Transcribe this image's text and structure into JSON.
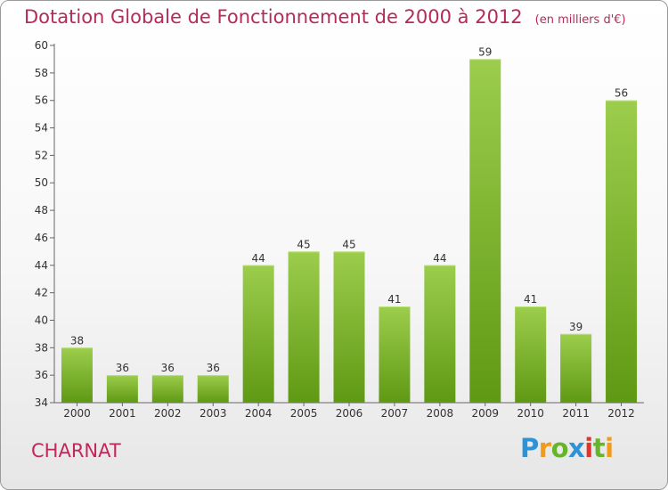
{
  "chart_data": {
    "type": "bar",
    "title": "Dotation Globale de Fonctionnement de 2000 à 2012",
    "unit_note": "(en milliers d'€)",
    "categories": [
      "2000",
      "2001",
      "2002",
      "2003",
      "2004",
      "2005",
      "2006",
      "2007",
      "2008",
      "2009",
      "2010",
      "2011",
      "2012"
    ],
    "values": [
      38,
      36,
      36,
      36,
      44,
      45,
      45,
      41,
      44,
      59,
      41,
      39,
      56
    ],
    "ylim": [
      34,
      60
    ],
    "yticks": [
      34,
      36,
      38,
      40,
      42,
      44,
      46,
      48,
      50,
      52,
      54,
      56,
      58,
      60
    ],
    "grid": false,
    "bar_color_top": "#9ccd4c",
    "bar_color_bottom": "#5f9914"
  },
  "commune": "CHARNAT",
  "brand": {
    "logo_text": "Proxiti",
    "colors": [
      "#2e93d6",
      "#f29a1c",
      "#66b52a",
      "#e5322d"
    ]
  }
}
